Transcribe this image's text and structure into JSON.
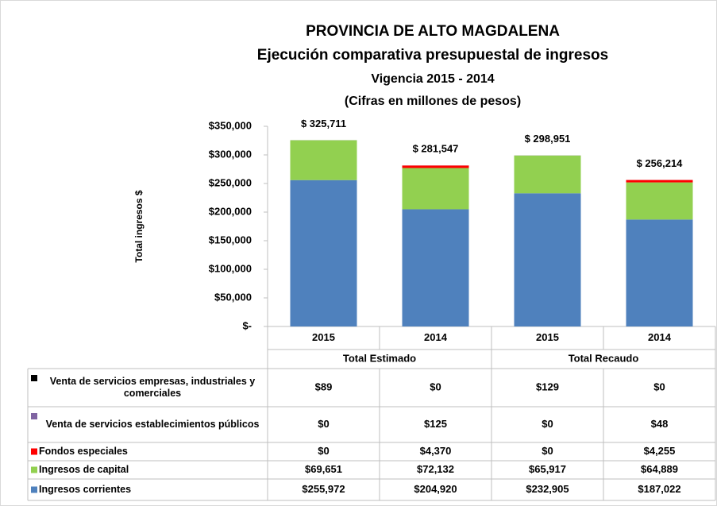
{
  "chart_data": {
    "type": "stacked_bar",
    "title": "PROVINCIA  DE ALTO MAGDALENA",
    "subtitle": [
      "Ejecución comparativa presupuestal de ingresos",
      "Vigencia 2015 - 2014",
      "(Cifras en millones de pesos)"
    ],
    "y_label": "Total ingresos $",
    "categories": [
      "2015",
      "2014",
      "2015",
      "2014"
    ],
    "groups": [
      "Total Estimado",
      "Total Recaudo"
    ],
    "totals": [
      325711,
      281547,
      298951,
      256214
    ],
    "total_labels": [
      "$ 325,711",
      "$ 281,547",
      "$ 298,951",
      "$ 256,214"
    ],
    "series": [
      {
        "name": "Venta de servicios empresas, industriales y comerciales",
        "color": "#000000",
        "values": [
          89,
          0,
          129,
          0
        ],
        "value_labels": [
          "$89",
          "$0",
          "$129",
          "$0"
        ]
      },
      {
        "name": "Venta de servicios establecimientos públicos",
        "color": "#8064a2",
        "values": [
          0,
          125,
          0,
          48
        ],
        "value_labels": [
          "$0",
          "$125",
          "$0",
          "$48"
        ]
      },
      {
        "name": "Fondos especiales",
        "color": "#ff0000",
        "values": [
          0,
          4370,
          0,
          4255
        ],
        "value_labels": [
          "$0",
          "$4,370",
          "$0",
          "$4,255"
        ]
      },
      {
        "name": "Ingresos de capital",
        "color": "#92d050",
        "values": [
          69651,
          72132,
          65917,
          64889
        ],
        "value_labels": [
          "$69,651",
          "$72,132",
          "$65,917",
          "$64,889"
        ]
      },
      {
        "name": "Ingresos corrientes",
        "color": "#4f81bd",
        "values": [
          255972,
          204920,
          232905,
          187022
        ],
        "value_labels": [
          "$255,972",
          "$204,920",
          "$232,905",
          "$187,022"
        ]
      }
    ],
    "ylim": [
      0,
      350000
    ],
    "yticks": [
      {
        "value": 0,
        "label": "$-"
      },
      {
        "value": 50000,
        "label": "$50,000"
      },
      {
        "value": 100000,
        "label": "$100,000"
      },
      {
        "value": 150000,
        "label": "$150,000"
      },
      {
        "value": 200000,
        "label": "$200,000"
      },
      {
        "value": 250000,
        "label": "$250,000"
      },
      {
        "value": 300000,
        "label": "$300,000"
      },
      {
        "value": 350000,
        "label": "$350,000"
      }
    ],
    "grid": false
  }
}
